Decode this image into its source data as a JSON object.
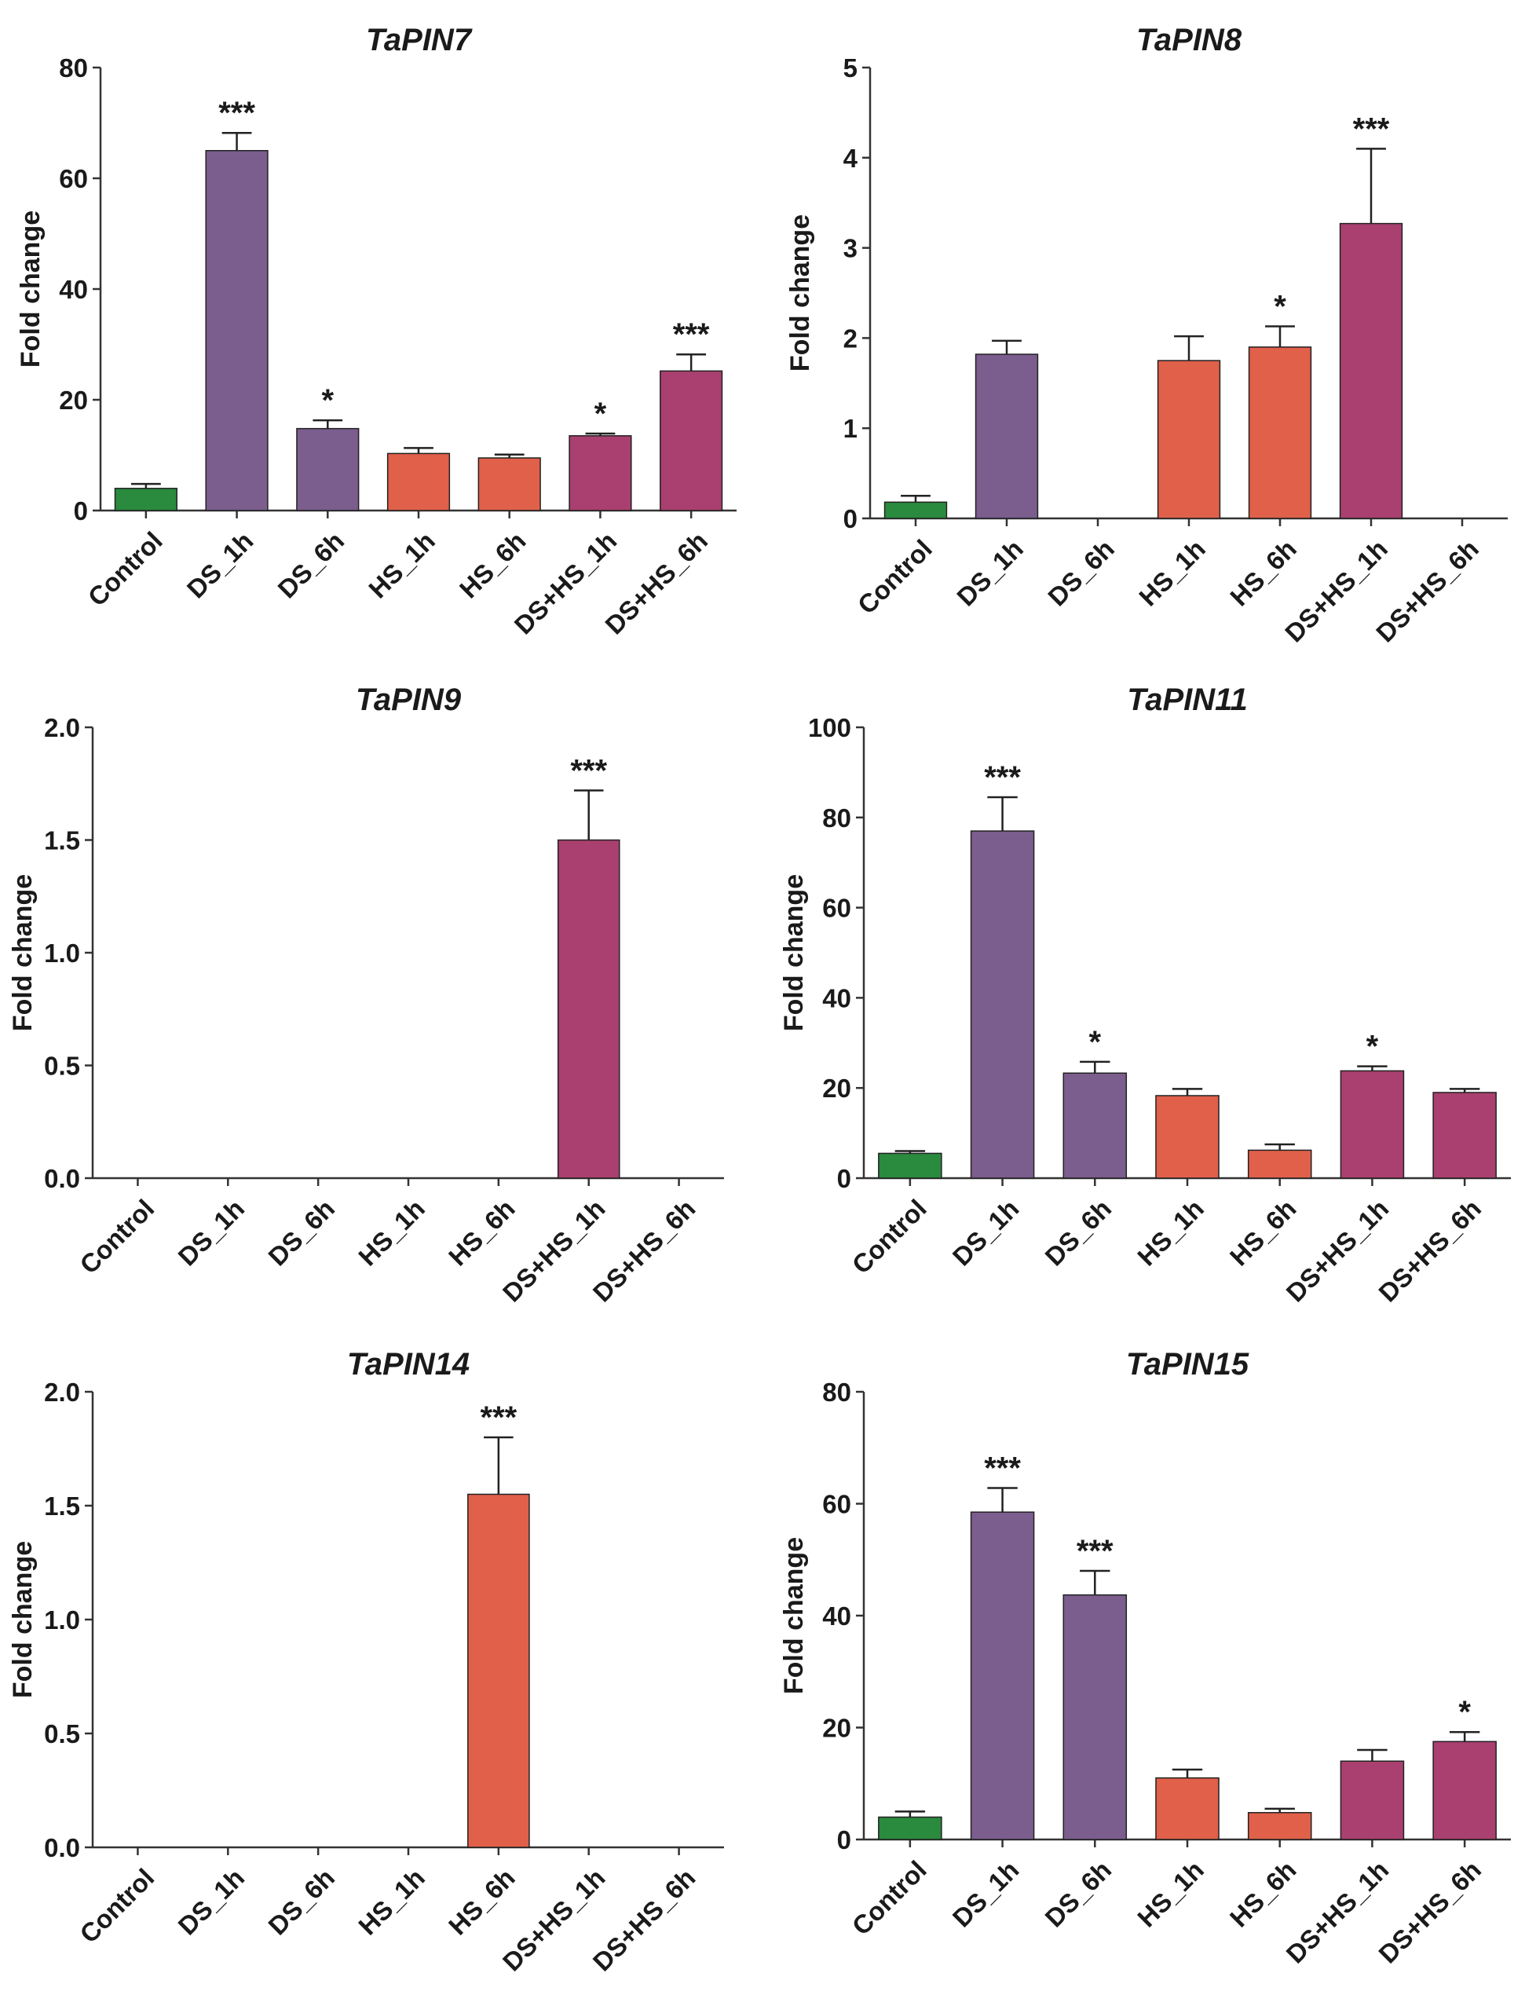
{
  "chart_data": [
    {
      "type": "bar",
      "title": "TaPIN7",
      "ylabel": "Fold change",
      "xlabel": "",
      "categories": [
        "Control",
        "DS_1h",
        "DS_6h",
        "HS_1h",
        "HS_6h",
        "DS+HS_1h",
        "DS+HS_6h"
      ],
      "values": [
        4,
        65,
        14.8,
        10.3,
        9.5,
        13.5,
        25.2
      ],
      "errors": [
        0.8,
        3.2,
        1.5,
        1.0,
        0.6,
        0.4,
        3.0
      ],
      "significance": [
        "",
        "***",
        "*",
        "",
        "",
        "*",
        "***"
      ],
      "ylim": [
        0,
        80
      ],
      "yticks": [
        "0",
        "20",
        "40",
        "60",
        "80"
      ]
    },
    {
      "type": "bar",
      "title": "TaPIN8",
      "ylabel": "Fold change",
      "xlabel": "",
      "categories": [
        "Control",
        "DS_1h",
        "DS_6h",
        "HS_1h",
        "HS_6h",
        "DS+HS_1h",
        "DS+HS_6h"
      ],
      "values": [
        0.18,
        1.82,
        0,
        1.75,
        1.9,
        3.27,
        0
      ],
      "errors": [
        0.07,
        0.15,
        0,
        0.27,
        0.23,
        0.83,
        0
      ],
      "significance": [
        "",
        "",
        "",
        "",
        "*",
        "***",
        ""
      ],
      "ylim": [
        0,
        5
      ],
      "yticks": [
        "0",
        "1",
        "2",
        "3",
        "4",
        "5"
      ]
    },
    {
      "type": "bar",
      "title": "TaPIN9",
      "ylabel": "Fold change",
      "xlabel": "",
      "categories": [
        "Control",
        "DS_1h",
        "DS_6h",
        "HS_1h",
        "HS_6h",
        "DS+HS_1h",
        "DS+HS_6h"
      ],
      "values": [
        0,
        0,
        0,
        0,
        0,
        1.5,
        0
      ],
      "errors": [
        0,
        0,
        0,
        0,
        0,
        0.22,
        0
      ],
      "significance": [
        "",
        "",
        "",
        "",
        "",
        "***",
        ""
      ],
      "ylim": [
        0,
        2
      ],
      "yticks": [
        "0.0",
        "0.5",
        "1.0",
        "1.5",
        "2.0"
      ]
    },
    {
      "type": "bar",
      "title": "TaPIN11",
      "ylabel": "Fold change",
      "xlabel": "",
      "categories": [
        "Control",
        "DS_1h",
        "DS_6h",
        "HS_1h",
        "HS_6h",
        "DS+HS_1h",
        "DS+HS_6h"
      ],
      "values": [
        5.5,
        77,
        23.3,
        18.3,
        6.2,
        23.8,
        19
      ],
      "errors": [
        0.5,
        7.5,
        2.5,
        1.5,
        1.3,
        1.0,
        0.8
      ],
      "significance": [
        "",
        "***",
        "*",
        "",
        "",
        "*",
        ""
      ],
      "ylim": [
        0,
        100
      ],
      "yticks": [
        "0",
        "20",
        "40",
        "60",
        "80",
        "100"
      ]
    },
    {
      "type": "bar",
      "title": "TaPIN14",
      "ylabel": "Fold change",
      "xlabel": "",
      "categories": [
        "Control",
        "DS_1h",
        "DS_6h",
        "HS_1h",
        "HS_6h",
        "DS+HS_1h",
        "DS+HS_6h"
      ],
      "values": [
        0,
        0,
        0,
        0,
        1.55,
        0,
        0
      ],
      "errors": [
        0,
        0,
        0,
        0,
        0.25,
        0,
        0
      ],
      "significance": [
        "",
        "",
        "",
        "",
        "***",
        "",
        ""
      ],
      "ylim": [
        0,
        2
      ],
      "yticks": [
        "0.0",
        "0.5",
        "1.0",
        "1.5",
        "2.0"
      ]
    },
    {
      "type": "bar",
      "title": "TaPIN15",
      "ylabel": "Fold change",
      "xlabel": "",
      "categories": [
        "Control",
        "DS_1h",
        "DS_6h",
        "HS_1h",
        "HS_6h",
        "DS+HS_1h",
        "DS+HS_6h"
      ],
      "values": [
        4,
        58.5,
        43.7,
        11,
        4.8,
        14,
        17.5
      ],
      "errors": [
        1.0,
        4.3,
        4.3,
        1.5,
        0.7,
        2.0,
        1.7
      ],
      "significance": [
        "",
        "***",
        "***",
        "",
        "",
        "",
        "*"
      ],
      "ylim": [
        0,
        80
      ],
      "yticks": [
        "0",
        "20",
        "40",
        "60",
        "80"
      ]
    }
  ],
  "colors": {
    "control": "#2a8a3e",
    "drought": "#7b5d8e",
    "heat": "#e0604a",
    "combined": "#a9406f"
  }
}
